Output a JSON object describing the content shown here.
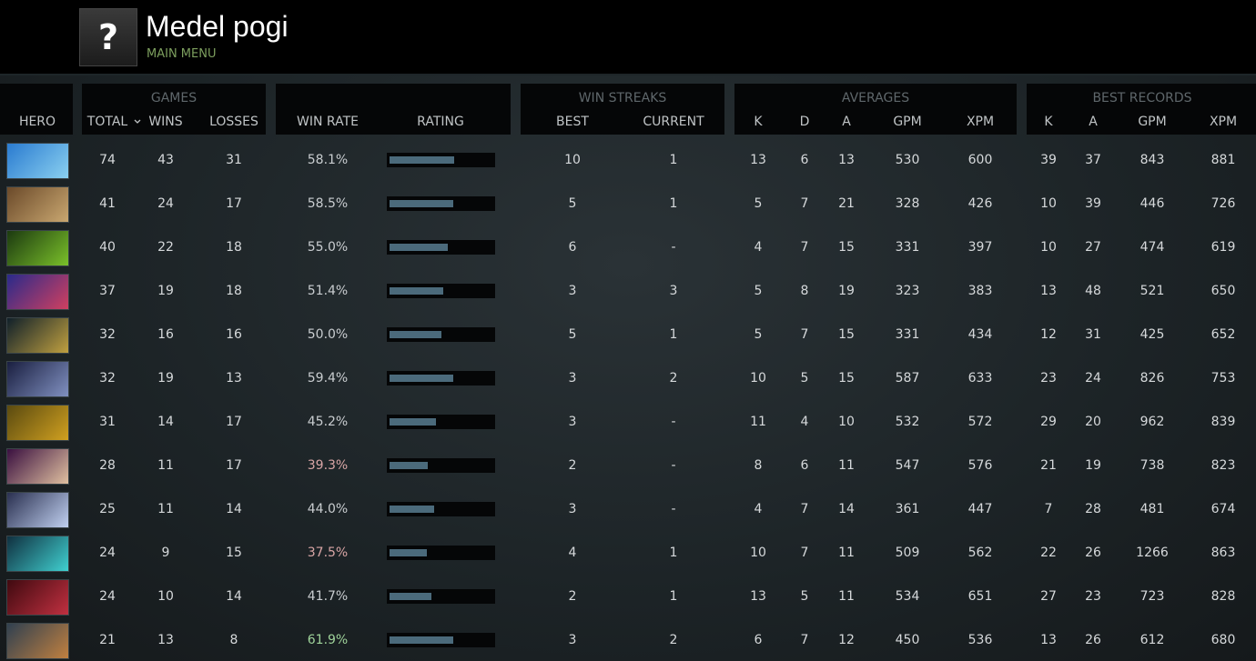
{
  "header": {
    "icon": "?",
    "title": "Medel pogi",
    "subtitle": "MAIN MENU"
  },
  "table": {
    "groups": [
      "GAMES",
      "WIN STREAKS",
      "AVERAGES",
      "BEST RECORDS"
    ],
    "columns": [
      "HERO",
      "TOTAL",
      "WINS",
      "LOSSES",
      "WIN RATE",
      "RATING",
      "BEST",
      "CURRENT",
      "K",
      "D",
      "A",
      "GPM",
      "XPM",
      "K",
      "A",
      "GPM",
      "XPM"
    ],
    "rating_scale": [
      0,
      100
    ],
    "rows": [
      {
        "cells": [
          74,
          43,
          31,
          "58.1%",
          63,
          10,
          1,
          13,
          6,
          13,
          530,
          600,
          39,
          37,
          843,
          881
        ],
        "win_rate_color": "#c9cdd0"
      },
      {
        "cells": [
          41,
          24,
          17,
          "58.5%",
          62,
          5,
          1,
          5,
          7,
          21,
          328,
          426,
          10,
          39,
          446,
          726
        ],
        "win_rate_color": "#c9cdd0"
      },
      {
        "cells": [
          40,
          22,
          18,
          "55.0%",
          57,
          6,
          "-",
          4,
          7,
          15,
          331,
          397,
          10,
          27,
          474,
          619
        ],
        "win_rate_color": "#c9cdd0"
      },
      {
        "cells": [
          37,
          19,
          18,
          "51.4%",
          52,
          3,
          3,
          5,
          8,
          19,
          323,
          383,
          13,
          48,
          521,
          650
        ],
        "win_rate_color": "#c9cdd0"
      },
      {
        "cells": [
          32,
          16,
          16,
          "50.0%",
          50,
          5,
          1,
          5,
          7,
          15,
          331,
          434,
          12,
          31,
          425,
          652
        ],
        "win_rate_color": "#c9cdd0"
      },
      {
        "cells": [
          32,
          19,
          13,
          "59.4%",
          62,
          3,
          2,
          10,
          5,
          15,
          587,
          633,
          23,
          24,
          826,
          753
        ],
        "win_rate_color": "#c9cdd0"
      },
      {
        "cells": [
          31,
          14,
          17,
          "45.2%",
          45,
          3,
          "-",
          11,
          4,
          10,
          532,
          572,
          29,
          20,
          962,
          839
        ],
        "win_rate_color": "#c9cdd0"
      },
      {
        "cells": [
          28,
          11,
          17,
          "39.3%",
          37,
          2,
          "-",
          8,
          6,
          11,
          547,
          576,
          21,
          19,
          738,
          823
        ],
        "win_rate_color": "#d9a6a6"
      },
      {
        "cells": [
          25,
          11,
          14,
          "44.0%",
          43,
          3,
          "-",
          4,
          7,
          14,
          361,
          447,
          7,
          28,
          481,
          674
        ],
        "win_rate_color": "#c9cdd0"
      },
      {
        "cells": [
          24,
          9,
          15,
          "37.5%",
          36,
          4,
          1,
          10,
          7,
          11,
          509,
          562,
          22,
          26,
          1266,
          863
        ],
        "win_rate_color": "#d9a6a6"
      },
      {
        "cells": [
          24,
          10,
          14,
          "41.7%",
          41,
          2,
          1,
          13,
          5,
          11,
          534,
          651,
          27,
          23,
          723,
          828
        ],
        "win_rate_color": "#c9cdd0"
      },
      {
        "cells": [
          21,
          13,
          8,
          "61.9%",
          62,
          3,
          2,
          6,
          7,
          12,
          450,
          536,
          13,
          26,
          612,
          680
        ],
        "win_rate_color": "#9fd39a"
      }
    ]
  }
}
